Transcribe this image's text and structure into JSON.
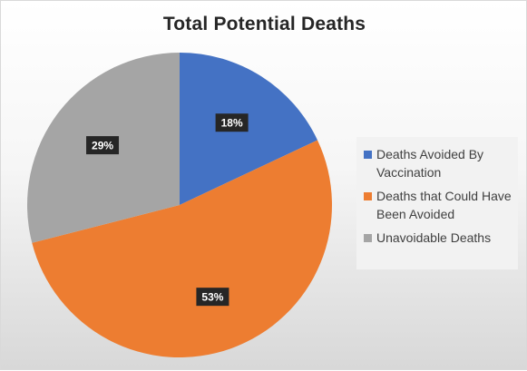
{
  "chart_data": {
    "type": "pie",
    "title": "Total Potential Deaths",
    "legend_position": "right",
    "slices": [
      {
        "label": "Deaths Avoided By Vaccination",
        "value": 18,
        "display": "18%",
        "color": "#4472c4"
      },
      {
        "label": "Deaths that Could Have Been Avoided",
        "value": 53,
        "display": "53%",
        "color": "#ed7d31"
      },
      {
        "label": "Unavoidable Deaths",
        "value": 29,
        "display": "29%",
        "color": "#a5a5a5"
      }
    ]
  }
}
